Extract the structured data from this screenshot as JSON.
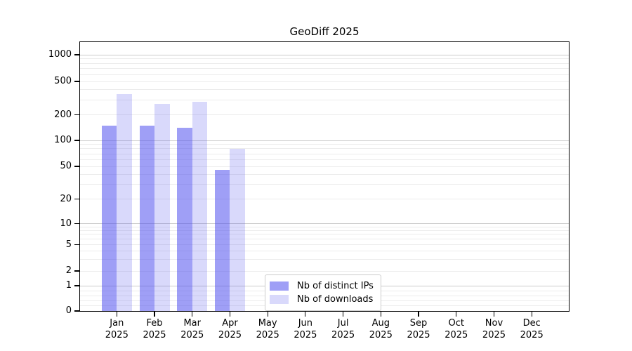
{
  "title": "GeoDiff 2025",
  "chart_data": {
    "type": "bar",
    "title": "GeoDiff 2025",
    "x_categories": [
      "Jan 2025",
      "Feb 2025",
      "Mar 2025",
      "Apr 2025",
      "May 2025",
      "Jun 2025",
      "Jul 2025",
      "Aug 2025",
      "Sep 2025",
      "Oct 2025",
      "Nov 2025",
      "Dec 2025"
    ],
    "x_tick_months": [
      "Jan",
      "Feb",
      "Mar",
      "Apr",
      "May",
      "Jun",
      "Jul",
      "Aug",
      "Sep",
      "Oct",
      "Nov",
      "Dec"
    ],
    "x_tick_year": "2025",
    "yscale": "symlog",
    "y_ticks": [
      0,
      1,
      2,
      5,
      10,
      20,
      50,
      100,
      200,
      500,
      1000
    ],
    "ylim": [
      0,
      1400
    ],
    "grid": true,
    "legend_position": "lower center",
    "series": [
      {
        "name": "Nb of distinct IPs",
        "color": "#a4a4f5",
        "fill_rgba": "rgba(80,80,238,0.55)",
        "values": [
          150,
          150,
          140,
          45,
          null,
          null,
          null,
          null,
          null,
          null,
          null,
          null
        ]
      },
      {
        "name": "Nb of downloads",
        "color": "#d8d8f8",
        "fill_rgba": "rgba(80,80,238,0.22)",
        "values": [
          350,
          270,
          285,
          80,
          null,
          null,
          null,
          null,
          null,
          null,
          null,
          null
        ]
      }
    ]
  },
  "colors": {
    "background": "#ffffff",
    "axis": "#000000",
    "text": "#000000",
    "major_grid": "#cbcbcb",
    "minor_grid": "#ececec",
    "legend_border": "#cccccc"
  }
}
